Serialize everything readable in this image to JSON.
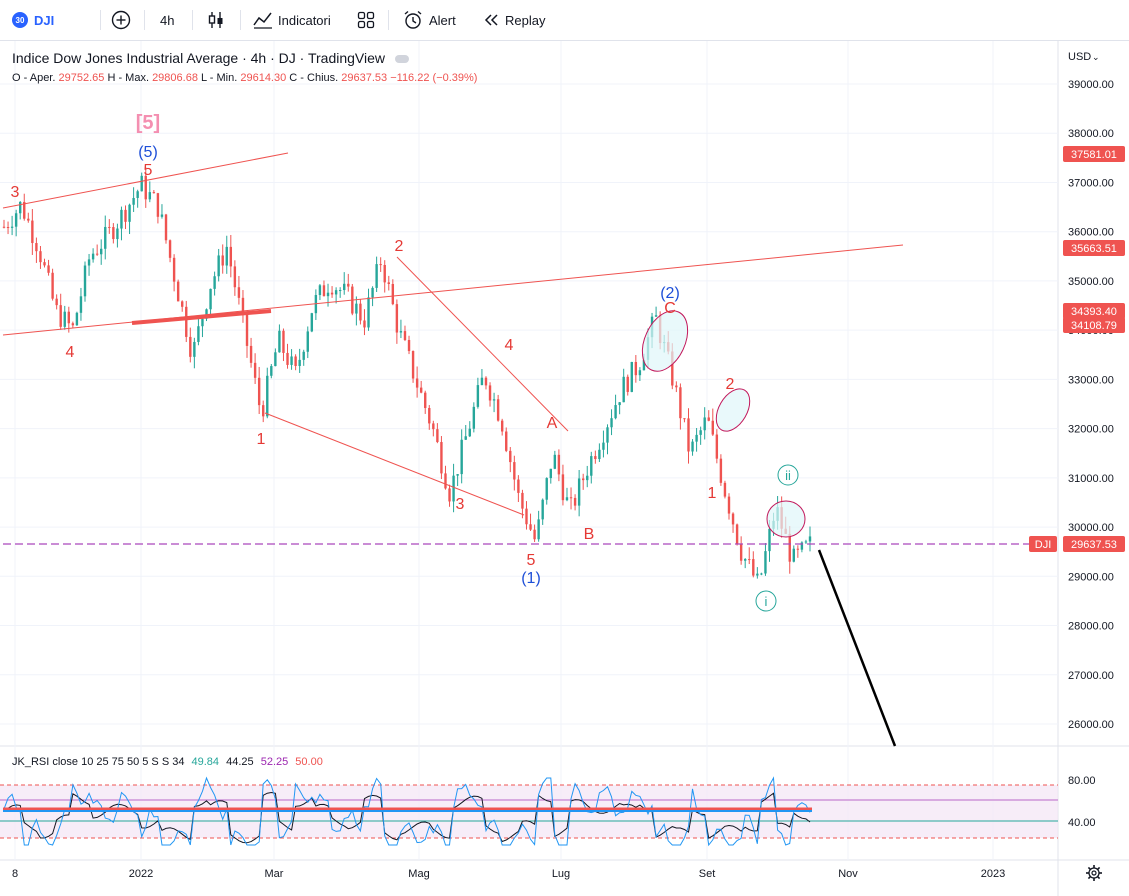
{
  "toolbar": {
    "symbol_badge": "30",
    "symbol": "DJI",
    "add_symbol": "+",
    "interval": "4h",
    "indicators_label": "Indicatori",
    "alert_label": "Alert",
    "replay_label": "Replay"
  },
  "legend": {
    "title": "Indice Dow Jones Industrial Average · 4h · DJ · TradingView",
    "o_label": "O",
    "open_label": "- Aper.",
    "open": "29752.65",
    "high_label": "H - Max.",
    "high": "29806.68",
    "low_label": "L - Min.",
    "low": "29614.30",
    "close_label": "C - Chius.",
    "close": "29637.53",
    "change": "−116.22 (−0.39%)"
  },
  "rsi_legend": {
    "name": "JK_RSI close 10 25 75 50 5 S S 34",
    "v1": "49.84",
    "v2": "44.25",
    "v3": "52.25",
    "v4": "50.00"
  },
  "price_axis": {
    "currency": "USD",
    "ticks": [
      "39000.00",
      "38000.00",
      "37000.00",
      "36000.00",
      "35000.00",
      "34000.00",
      "33000.00",
      "32000.00",
      "31000.00",
      "30000.00",
      "29000.00",
      "28000.00",
      "27000.00",
      "26000.00"
    ],
    "tags": [
      {
        "value": 37581.01,
        "label": "37581.01"
      },
      {
        "value": 35663.51,
        "label": "35663.51"
      },
      {
        "value": 34393.4,
        "label": "34393.40"
      },
      {
        "value": 34108.79,
        "label": "34108.79"
      },
      {
        "value": 29637.53,
        "label": "29637.53"
      }
    ],
    "last_symbol_tag": "DJI"
  },
  "rsi_axis": {
    "ticks": [
      "80.00",
      "40.00"
    ]
  },
  "time_axis": [
    "8",
    "2022",
    "Mar",
    "Mag",
    "Lug",
    "Set",
    "Nov",
    "2023"
  ],
  "colors": {
    "up": "#26a69a",
    "down": "#ef5350",
    "wave_red": "#e53935",
    "wave_blue": "#1e4fd8",
    "wave_pink": "#f48fb1",
    "wave_teal": "#26a69a",
    "trendline": "#ef5350",
    "price_line": "#ab47bc",
    "rsi_line": "#2196f3",
    "rsi_band": "#9c27b0"
  },
  "chart_data": {
    "type": "line",
    "title": "Indice Dow Jones Industrial Average · 4h · DJ · TradingView",
    "xlabel": "",
    "ylabel": "",
    "x_ticks": [
      "8",
      "2022",
      "Mar",
      "Mag",
      "Lug",
      "Set",
      "Nov",
      "2023"
    ],
    "ylim": [
      25500,
      39500
    ],
    "currency": "USD",
    "last_price": 29637.53,
    "series": [
      {
        "name": "DJI",
        "points": [
          {
            "x": "Dec 2021",
            "y": 36100
          },
          {
            "x": "Dec 2021",
            "y": 36550
          },
          {
            "x": "Dec 2021",
            "y": 35700
          },
          {
            "x": "Dec 2021",
            "y": 34400
          },
          {
            "x": "Dec 2021",
            "y": 34000
          },
          {
            "x": "Dec 2021",
            "y": 35500
          },
          {
            "x": "Dec 2021",
            "y": 35900
          },
          {
            "x": "Dec 2021",
            "y": 36400
          },
          {
            "x": "Jan 2022",
            "y": 36950
          },
          {
            "x": "Jan 2022",
            "y": 36500
          },
          {
            "x": "Jan 2022",
            "y": 35000
          },
          {
            "x": "Jan 2022",
            "y": 33500
          },
          {
            "x": "Feb 2022",
            "y": 34900
          },
          {
            "x": "Feb 2022",
            "y": 35700
          },
          {
            "x": "Feb 2022",
            "y": 34000
          },
          {
            "x": "Feb 2022",
            "y": 32300
          },
          {
            "x": "Mar 2022",
            "y": 33800
          },
          {
            "x": "Mar 2022",
            "y": 33100
          },
          {
            "x": "Mar 2022",
            "y": 34500
          },
          {
            "x": "Mar 2022",
            "y": 35000
          },
          {
            "x": "Apr 2022",
            "y": 34700
          },
          {
            "x": "Apr 2022",
            "y": 34200
          },
          {
            "x": "Apr 2022",
            "y": 35450
          },
          {
            "x": "Apr 2022",
            "y": 34000
          },
          {
            "x": "Apr 2022",
            "y": 33000
          },
          {
            "x": "May 2022",
            "y": 32000
          },
          {
            "x": "May 2022",
            "y": 30700
          },
          {
            "x": "May 2022",
            "y": 31900
          },
          {
            "x": "May 2022",
            "y": 33100
          },
          {
            "x": "Jun 2022",
            "y": 32200
          },
          {
            "x": "Jun 2022",
            "y": 30600
          },
          {
            "x": "Jun 2022",
            "y": 29700
          },
          {
            "x": "Jun 2022",
            "y": 31500
          },
          {
            "x": "Jul 2022",
            "y": 30300
          },
          {
            "x": "Jul 2022",
            "y": 31200
          },
          {
            "x": "Jul 2022",
            "y": 32000
          },
          {
            "x": "Aug 2022",
            "y": 32800
          },
          {
            "x": "Aug 2022",
            "y": 33300
          },
          {
            "x": "Aug 2022",
            "y": 34250
          },
          {
            "x": "Aug 2022",
            "y": 33000
          },
          {
            "x": "Sep 2022",
            "y": 31500
          },
          {
            "x": "Sep 2022",
            "y": 32200
          },
          {
            "x": "Sep 2022",
            "y": 30800
          },
          {
            "x": "Sep 2022",
            "y": 29500
          },
          {
            "x": "Sep 2022",
            "y": 28800
          },
          {
            "x": "Oct 2022",
            "y": 30400
          },
          {
            "x": "Oct 2022",
            "y": 29300
          },
          {
            "x": "Oct 2022",
            "y": 29637.53
          }
        ]
      }
    ],
    "wave_labels": [
      {
        "text": "[5]",
        "x": "Jan 2022",
        "y": 37900
      },
      {
        "text": "(5)",
        "x": "Jan 2022",
        "y": 37600
      },
      {
        "text": "5",
        "x": "Jan 2022",
        "y": 37250
      },
      {
        "text": "3",
        "x": "Dec 2021",
        "y": 36800
      },
      {
        "text": "4",
        "x": "Dec 2021",
        "y": 33550
      },
      {
        "text": "2",
        "x": "Apr 2022",
        "y": 35700
      },
      {
        "text": "1",
        "x": "Mar 2022",
        "y": 31800
      },
      {
        "text": "4",
        "x": "May 2022",
        "y": 33700
      },
      {
        "text": "3",
        "x": "Jun 2022",
        "y": 30500
      },
      {
        "text": "5",
        "x": "Jun 2022",
        "y": 29350
      },
      {
        "text": "(1)",
        "x": "Jun 2022",
        "y": 29000
      },
      {
        "text": "A",
        "x": "Jun 2022",
        "y": 32050
      },
      {
        "text": "B",
        "x": "Jul 2022",
        "y": 29800
      },
      {
        "text": "C",
        "x": "Aug 2022",
        "y": 34150
      },
      {
        "text": "(2)",
        "x": "Aug 2022",
        "y": 34500
      },
      {
        "text": "2",
        "x": "Sep 2022",
        "y": 32800
      },
      {
        "text": "1",
        "x": "Sep 2022",
        "y": 30650
      },
      {
        "text": "ii",
        "x": "Oct 2022",
        "y": 31050
      },
      {
        "text": "i",
        "x": "Sep 2022",
        "y": 28500
      }
    ],
    "rsi": {
      "name": "JK_RSI close 10 25 75 50 5 S S 34",
      "values_shown": [
        49.84,
        44.25,
        52.25,
        50.0
      ],
      "ticks": [
        80,
        40
      ]
    }
  }
}
